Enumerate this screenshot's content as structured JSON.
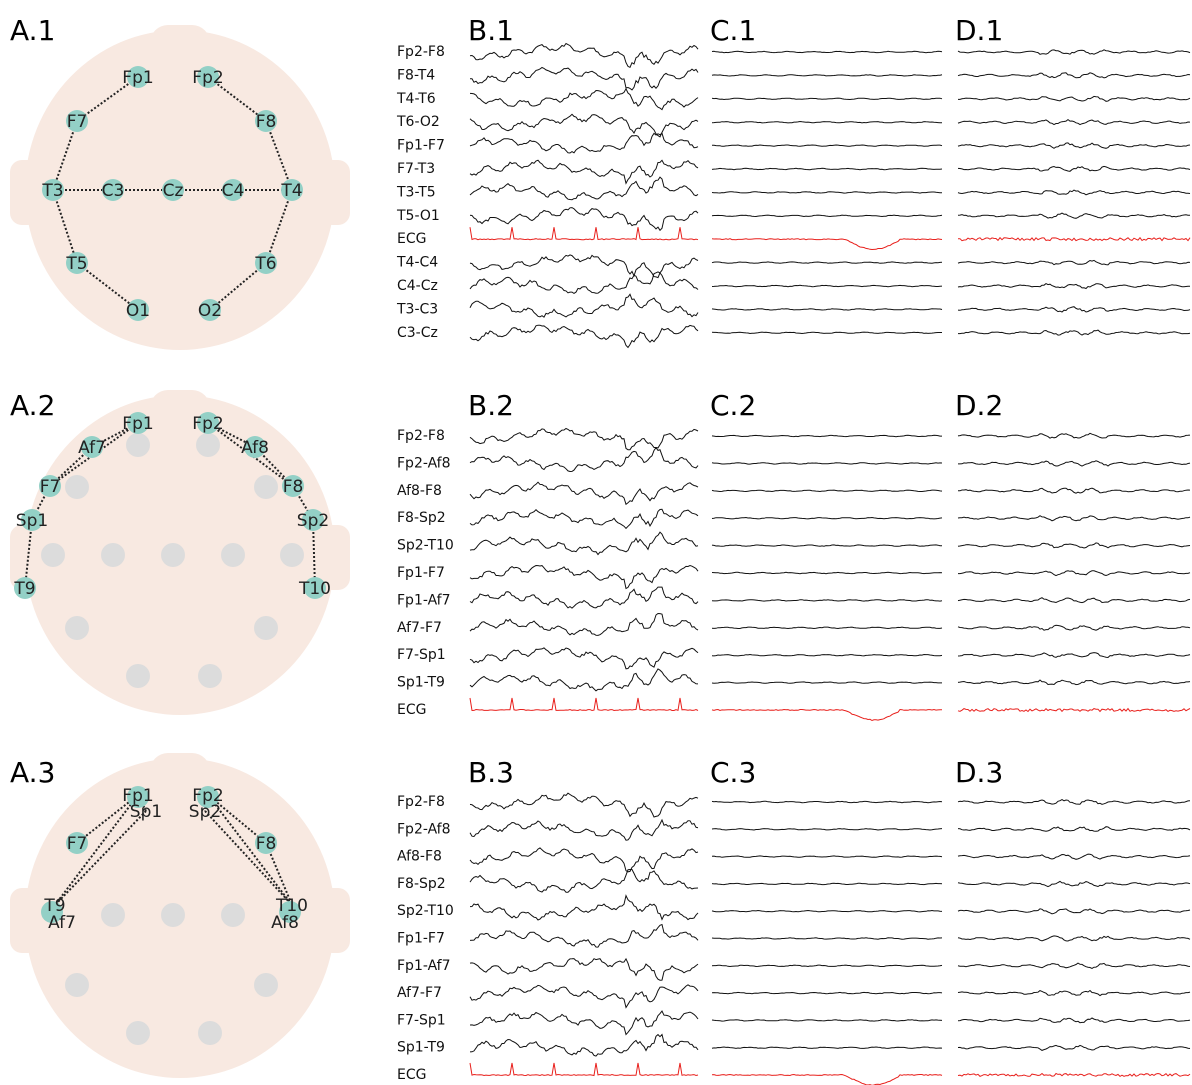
{
  "rows": [
    {
      "panels": [
        "A.1",
        "B.1",
        "C.1",
        "D.1"
      ],
      "electrodes": [
        "Fp1",
        "Fp2",
        "F7",
        "F8",
        "T3",
        "C3",
        "Cz",
        "C4",
        "T4",
        "T5",
        "T6",
        "O1",
        "O2"
      ],
      "channels": [
        {
          "label": "Fp2-F8"
        },
        {
          "label": "F8-T4"
        },
        {
          "label": "T4-T6"
        },
        {
          "label": "T6-O2"
        },
        {
          "label": "Fp1-F7"
        },
        {
          "label": "F7-T3"
        },
        {
          "label": "T3-T5"
        },
        {
          "label": "T5-O1"
        },
        {
          "label": "ECG",
          "color": "#e8201c"
        },
        {
          "label": "T4-C4"
        },
        {
          "label": "C4-Cz"
        },
        {
          "label": "T3-C3"
        },
        {
          "label": "C3-Cz"
        }
      ]
    },
    {
      "panels": [
        "A.2",
        "B.2",
        "C.2",
        "D.2"
      ],
      "electrodes": [
        "Fp1",
        "Fp2",
        "Af7",
        "Af8",
        "F7",
        "F8",
        "Sp1",
        "Sp2",
        "T9",
        "T10"
      ],
      "channels": [
        {
          "label": "Fp2-F8"
        },
        {
          "label": "Fp2-Af8"
        },
        {
          "label": "Af8-F8"
        },
        {
          "label": "F8-Sp2"
        },
        {
          "label": "Sp2-T10"
        },
        {
          "label": "Fp1-F7"
        },
        {
          "label": "Fp1-Af7"
        },
        {
          "label": "Af7-F7"
        },
        {
          "label": "F7-Sp1"
        },
        {
          "label": "Sp1-T9"
        },
        {
          "label": "ECG",
          "color": "#e8201c"
        }
      ]
    },
    {
      "panels": [
        "A.3",
        "B.3",
        "C.3",
        "D.3"
      ],
      "electrodes": [
        "Fp1",
        "Sp1",
        "Fp2",
        "Sp2",
        "F7",
        "F8",
        "T9",
        "Af7",
        "T10",
        "Af8"
      ],
      "channels": [
        {
          "label": "Fp2-F8"
        },
        {
          "label": "Fp2-Af8"
        },
        {
          "label": "Af8-F8"
        },
        {
          "label": "F8-Sp2"
        },
        {
          "label": "Sp2-T10"
        },
        {
          "label": "Fp1-F7"
        },
        {
          "label": "Fp1-Af7"
        },
        {
          "label": "Af7-F7"
        },
        {
          "label": "F7-Sp1"
        },
        {
          "label": "Sp1-T9"
        },
        {
          "label": "ECG",
          "color": "#e8201c"
        }
      ]
    }
  ]
}
